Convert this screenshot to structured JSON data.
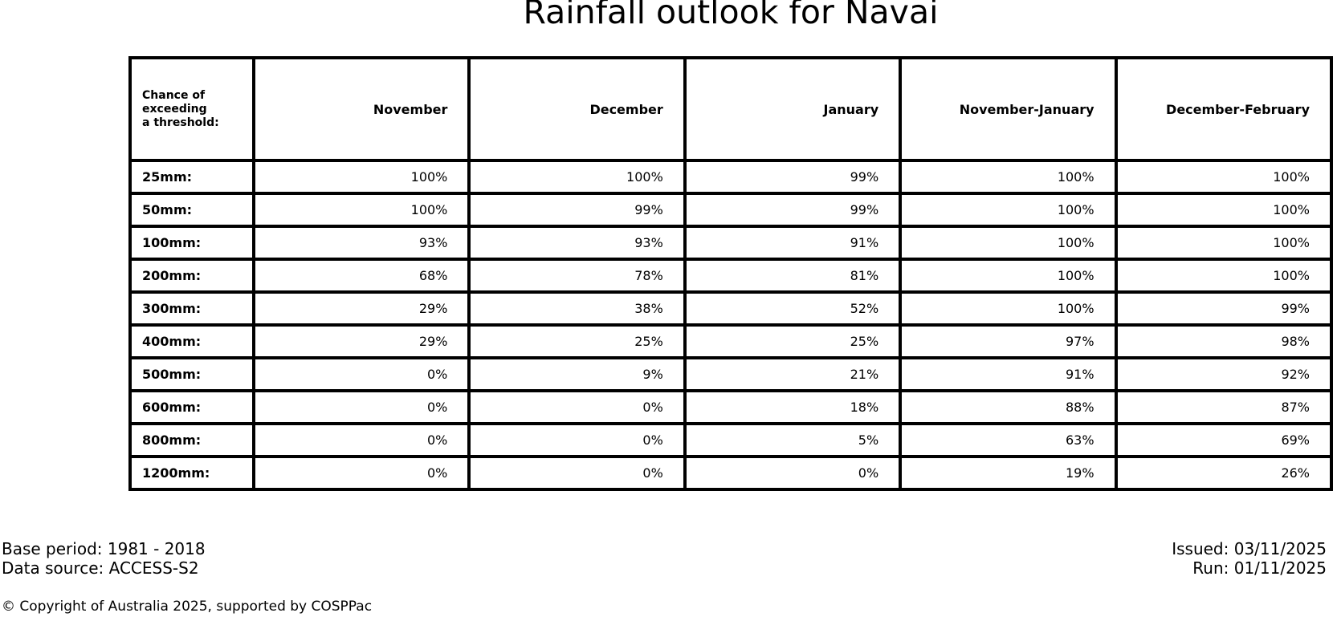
{
  "title": "Rainfall outlook for Navai",
  "table": {
    "corner_header": "Chance of\nexceeding\na threshold:",
    "columns": [
      "November",
      "December",
      "January",
      "November-January",
      "December-February"
    ],
    "rows": [
      {
        "label": "25mm:",
        "values": [
          "100%",
          "100%",
          "99%",
          "100%",
          "100%"
        ]
      },
      {
        "label": "50mm:",
        "values": [
          "100%",
          "99%",
          "99%",
          "100%",
          "100%"
        ]
      },
      {
        "label": "100mm:",
        "values": [
          "93%",
          "93%",
          "91%",
          "100%",
          "100%"
        ]
      },
      {
        "label": "200mm:",
        "values": [
          "68%",
          "78%",
          "81%",
          "100%",
          "100%"
        ]
      },
      {
        "label": "300mm:",
        "values": [
          "29%",
          "38%",
          "52%",
          "100%",
          "99%"
        ]
      },
      {
        "label": "400mm:",
        "values": [
          "29%",
          "25%",
          "25%",
          "97%",
          "98%"
        ]
      },
      {
        "label": "500mm:",
        "values": [
          "0%",
          "9%",
          "21%",
          "91%",
          "92%"
        ]
      },
      {
        "label": "600mm:",
        "values": [
          "0%",
          "0%",
          "18%",
          "88%",
          "87%"
        ]
      },
      {
        "label": "800mm:",
        "values": [
          "0%",
          "0%",
          "5%",
          "63%",
          "69%"
        ]
      },
      {
        "label": "1200mm:",
        "values": [
          "0%",
          "0%",
          "0%",
          "19%",
          "26%"
        ]
      }
    ]
  },
  "footer": {
    "base_period": "Base period: 1981 - 2018",
    "data_source": "Data source: ACCESS-S2",
    "issued": "Issued: 03/11/2025",
    "run": "Run: 01/11/2025",
    "copyright": "© Copyright of Australia 2025, supported by COSPPac"
  }
}
